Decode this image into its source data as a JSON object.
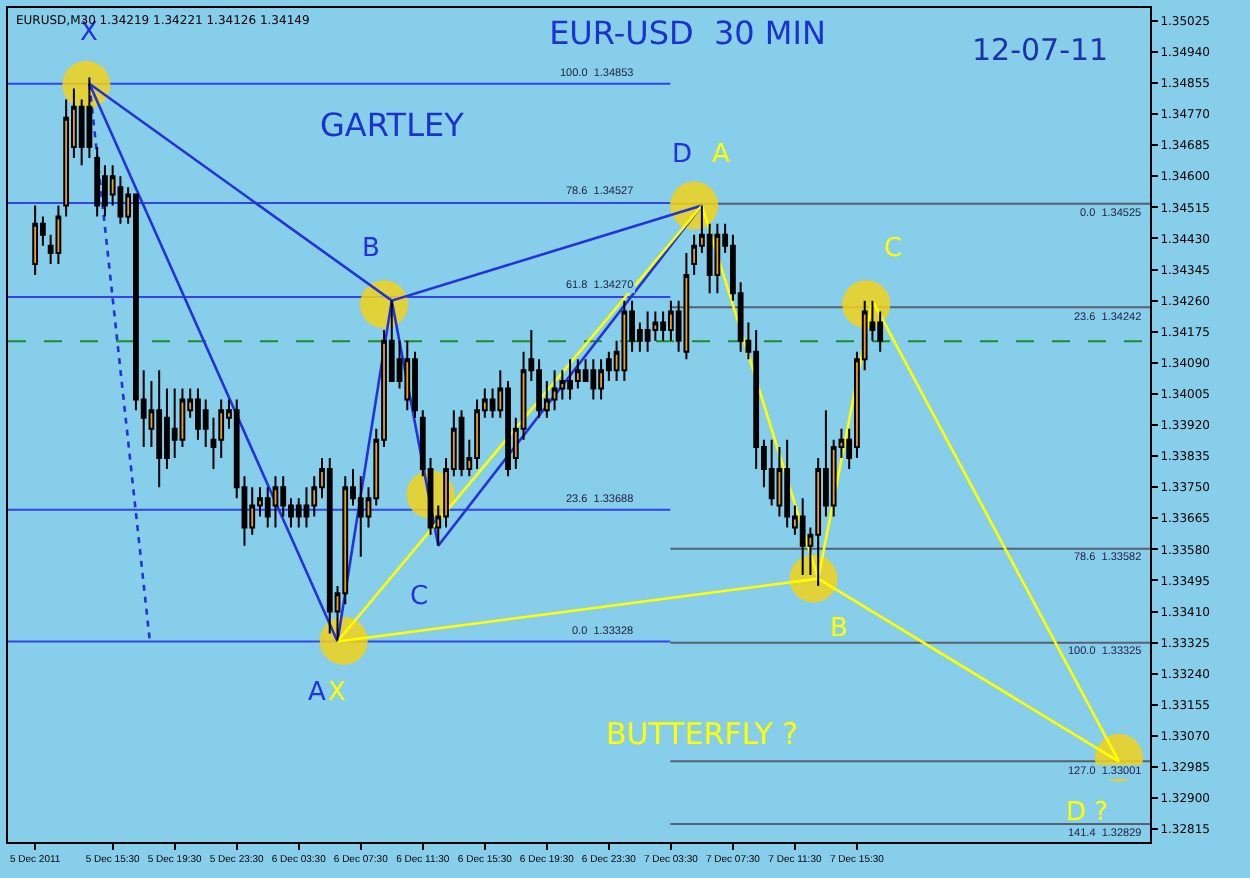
{
  "chart_data": {
    "type": "candlestick",
    "title": "EUR-USD  30 MIN",
    "subtitle": "12-07-11",
    "annotations": [
      "GARTLEY",
      "BUTTERFLY ?",
      "EURUSD,M30 1.34219 1.34221 1.34126 1.34149"
    ],
    "x": [
      "2011-12-05T10:30",
      "2011-12-05T11:00",
      "2011-12-05T11:30",
      "2011-12-05T12:00",
      "2011-12-05T12:30",
      "2011-12-05T13:00",
      "2011-12-05T13:30",
      "2011-12-05T14:00",
      "2011-12-05T14:30",
      "2011-12-05T15:00",
      "2011-12-05T15:30",
      "2011-12-05T16:00",
      "2011-12-05T16:30",
      "2011-12-05T17:00",
      "2011-12-05T17:30",
      "2011-12-05T18:00",
      "2011-12-05T18:30",
      "2011-12-05T19:00",
      "2011-12-05T19:30",
      "2011-12-05T20:00",
      "2011-12-05T20:30",
      "2011-12-05T21:00",
      "2011-12-05T21:30",
      "2011-12-05T22:00",
      "2011-12-05T22:30",
      "2011-12-05T23:00",
      "2011-12-05T23:30",
      "2011-12-06T00:00",
      "2011-12-06T00:30",
      "2011-12-06T01:00",
      "2011-12-06T01:30",
      "2011-12-06T02:00",
      "2011-12-06T02:30",
      "2011-12-06T03:00",
      "2011-12-06T03:30",
      "2011-12-06T04:00",
      "2011-12-06T04:30",
      "2011-12-06T05:00",
      "2011-12-06T05:30",
      "2011-12-06T06:00",
      "2011-12-06T06:30",
      "2011-12-06T07:00",
      "2011-12-06T07:30",
      "2011-12-06T08:00",
      "2011-12-06T08:30",
      "2011-12-06T09:00",
      "2011-12-06T09:30",
      "2011-12-06T10:00",
      "2011-12-06T10:30",
      "2011-12-06T11:00",
      "2011-12-06T11:30",
      "2011-12-06T12:00",
      "2011-12-06T12:30",
      "2011-12-06T13:00",
      "2011-12-06T13:30",
      "2011-12-06T14:00",
      "2011-12-06T14:30",
      "2011-12-06T15:00",
      "2011-12-06T15:30",
      "2011-12-06T16:00",
      "2011-12-06T16:30",
      "2011-12-06T17:00",
      "2011-12-06T17:30",
      "2011-12-06T18:00",
      "2011-12-06T18:30",
      "2011-12-06T19:00",
      "2011-12-06T19:30",
      "2011-12-06T20:00",
      "2011-12-06T20:30",
      "2011-12-06T21:00",
      "2011-12-06T21:30",
      "2011-12-06T22:00",
      "2011-12-06T22:30",
      "2011-12-06T23:00",
      "2011-12-06T23:30",
      "2011-12-07T00:00",
      "2011-12-07T00:30",
      "2011-12-07T01:00",
      "2011-12-07T01:30",
      "2011-12-07T02:00",
      "2011-12-07T02:30",
      "2011-12-07T03:00",
      "2011-12-07T03:30",
      "2011-12-07T04:00",
      "2011-12-07T04:30",
      "2011-12-07T05:00",
      "2011-12-07T05:30",
      "2011-12-07T06:00",
      "2011-12-07T06:30",
      "2011-12-07T07:00",
      "2011-12-07T07:30",
      "2011-12-07T08:00",
      "2011-12-07T08:30",
      "2011-12-07T09:00",
      "2011-12-07T09:30",
      "2011-12-07T10:00",
      "2011-12-07T10:30",
      "2011-12-07T11:00",
      "2011-12-07T11:30",
      "2011-12-07T12:00",
      "2011-12-07T12:30",
      "2011-12-07T13:00",
      "2011-12-07T13:30",
      "2011-12-07T14:00",
      "2011-12-07T14:30",
      "2011-12-07T15:00",
      "2011-12-07T15:30",
      "2011-12-07T16:00",
      "2011-12-07T16:30",
      "2011-12-07T17:00"
    ],
    "ohlc": [
      [
        1.3436,
        1.3452,
        1.3433,
        1.3447
      ],
      [
        1.3447,
        1.3449,
        1.3441,
        1.3444
      ],
      [
        1.3441,
        1.3444,
        1.3436,
        1.3439
      ],
      [
        1.3439,
        1.3452,
        1.3436,
        1.3449
      ],
      [
        1.3452,
        1.3481,
        1.3449,
        1.3476
      ],
      [
        1.3468,
        1.3484,
        1.3465,
        1.3479
      ],
      [
        1.3479,
        1.3481,
        1.3463,
        1.3468
      ],
      [
        1.3479,
        1.3487,
        1.3465,
        1.3468
      ],
      [
        1.3465,
        1.3468,
        1.3449,
        1.3452
      ],
      [
        1.346,
        1.3463,
        1.3449,
        1.3452
      ],
      [
        1.3455,
        1.3463,
        1.3452,
        1.346
      ],
      [
        1.3457,
        1.346,
        1.3447,
        1.3449
      ],
      [
        1.3449,
        1.3457,
        1.3447,
        1.3455
      ],
      [
        1.3455,
        1.3455,
        1.3396,
        1.3399
      ],
      [
        1.3399,
        1.3407,
        1.3386,
        1.3394
      ],
      [
        1.3391,
        1.3404,
        1.3386,
        1.3396
      ],
      [
        1.3396,
        1.3407,
        1.3375,
        1.3383
      ],
      [
        1.3394,
        1.3402,
        1.338,
        1.3383
      ],
      [
        1.3391,
        1.3402,
        1.3383,
        1.3388
      ],
      [
        1.3388,
        1.3402,
        1.3386,
        1.3399
      ],
      [
        1.3396,
        1.3402,
        1.3394,
        1.3399
      ],
      [
        1.3399,
        1.3402,
        1.3388,
        1.3391
      ],
      [
        1.3396,
        1.3399,
        1.3386,
        1.3391
      ],
      [
        1.3388,
        1.3394,
        1.338,
        1.3386
      ],
      [
        1.3388,
        1.3399,
        1.3383,
        1.3396
      ],
      [
        1.3394,
        1.3399,
        1.3391,
        1.3396
      ],
      [
        1.3396,
        1.3399,
        1.3372,
        1.3375
      ],
      [
        1.3375,
        1.3378,
        1.3359,
        1.3364
      ],
      [
        1.3364,
        1.3375,
        1.3362,
        1.337
      ],
      [
        1.337,
        1.3375,
        1.3367,
        1.3372
      ],
      [
        1.3372,
        1.3375,
        1.3364,
        1.3367
      ],
      [
        1.337,
        1.3378,
        1.3364,
        1.3375
      ],
      [
        1.3375,
        1.3378,
        1.3367,
        1.337
      ],
      [
        1.337,
        1.3372,
        1.3364,
        1.3367
      ],
      [
        1.337,
        1.3372,
        1.3364,
        1.3367
      ],
      [
        1.337,
        1.3375,
        1.3364,
        1.3367
      ],
      [
        1.337,
        1.3378,
        1.3367,
        1.3375
      ],
      [
        1.3375,
        1.3383,
        1.3372,
        1.338
      ],
      [
        1.338,
        1.3383,
        1.3335,
        1.3341
      ],
      [
        1.3341,
        1.3348,
        1.3333,
        1.3346
      ],
      [
        1.3346,
        1.3378,
        1.3343,
        1.3375
      ],
      [
        1.3375,
        1.338,
        1.337,
        1.3372
      ],
      [
        1.3372,
        1.3378,
        1.3356,
        1.3367
      ],
      [
        1.3367,
        1.3375,
        1.3364,
        1.3372
      ],
      [
        1.3372,
        1.3391,
        1.337,
        1.3388
      ],
      [
        1.3388,
        1.3418,
        1.3386,
        1.3415
      ],
      [
        1.3415,
        1.3426,
        1.3404,
        1.3404
      ],
      [
        1.341,
        1.3415,
        1.3402,
        1.3404
      ],
      [
        1.3399,
        1.3415,
        1.3396,
        1.341
      ],
      [
        1.341,
        1.3412,
        1.3394,
        1.3396
      ],
      [
        1.3394,
        1.3396,
        1.3378,
        1.338
      ],
      [
        1.338,
        1.3383,
        1.3362,
        1.3364
      ],
      [
        1.3364,
        1.337,
        1.3359,
        1.3367
      ],
      [
        1.3367,
        1.3383,
        1.3364,
        1.338
      ],
      [
        1.338,
        1.3396,
        1.3378,
        1.3391
      ],
      [
        1.3394,
        1.3396,
        1.3378,
        1.338
      ],
      [
        1.338,
        1.3388,
        1.3378,
        1.3383
      ],
      [
        1.3383,
        1.3399,
        1.338,
        1.3396
      ],
      [
        1.3396,
        1.3402,
        1.3394,
        1.3399
      ],
      [
        1.3399,
        1.3402,
        1.3394,
        1.3396
      ],
      [
        1.3396,
        1.3407,
        1.3394,
        1.3402
      ],
      [
        1.3402,
        1.3404,
        1.3378,
        1.338
      ],
      [
        1.3383,
        1.3394,
        1.338,
        1.3391
      ],
      [
        1.3391,
        1.3412,
        1.3388,
        1.3407
      ],
      [
        1.341,
        1.3418,
        1.3404,
        1.3407
      ],
      [
        1.3407,
        1.341,
        1.3394,
        1.3396
      ],
      [
        1.3396,
        1.3404,
        1.3394,
        1.3399
      ],
      [
        1.3399,
        1.3407,
        1.3396,
        1.3402
      ],
      [
        1.3402,
        1.3407,
        1.3399,
        1.3404
      ],
      [
        1.3404,
        1.341,
        1.3399,
        1.3402
      ],
      [
        1.3404,
        1.341,
        1.3402,
        1.3407
      ],
      [
        1.3407,
        1.341,
        1.3404,
        1.3404
      ],
      [
        1.3407,
        1.341,
        1.3399,
        1.3402
      ],
      [
        1.3402,
        1.341,
        1.3399,
        1.3407
      ],
      [
        1.341,
        1.3412,
        1.3404,
        1.3407
      ],
      [
        1.3407,
        1.3415,
        1.3404,
        1.3412
      ],
      [
        1.3407,
        1.3426,
        1.3404,
        1.3423
      ],
      [
        1.3423,
        1.3426,
        1.3412,
        1.3415
      ],
      [
        1.3418,
        1.342,
        1.3412,
        1.3415
      ],
      [
        1.3418,
        1.3423,
        1.3412,
        1.3415
      ],
      [
        1.3418,
        1.3423,
        1.3415,
        1.342
      ],
      [
        1.342,
        1.3423,
        1.3415,
        1.3418
      ],
      [
        1.3418,
        1.3426,
        1.3415,
        1.3423
      ],
      [
        1.3423,
        1.3426,
        1.3412,
        1.3415
      ],
      [
        1.3412,
        1.3439,
        1.341,
        1.3433
      ],
      [
        1.3436,
        1.3444,
        1.3433,
        1.3441
      ],
      [
        1.3441,
        1.3452,
        1.3439,
        1.3444
      ],
      [
        1.3444,
        1.3447,
        1.3428,
        1.3433
      ],
      [
        1.3433,
        1.3447,
        1.3428,
        1.3444
      ],
      [
        1.3444,
        1.3447,
        1.3439,
        1.3441
      ],
      [
        1.3441,
        1.3444,
        1.3426,
        1.3428
      ],
      [
        1.3428,
        1.3431,
        1.3412,
        1.3415
      ],
      [
        1.3415,
        1.342,
        1.341,
        1.3412
      ],
      [
        1.3412,
        1.3418,
        1.338,
        1.3386
      ],
      [
        1.3386,
        1.3388,
        1.3375,
        1.338
      ],
      [
        1.338,
        1.3388,
        1.337,
        1.3372
      ],
      [
        1.337,
        1.3386,
        1.3367,
        1.338
      ],
      [
        1.338,
        1.3388,
        1.3364,
        1.3367
      ],
      [
        1.3364,
        1.337,
        1.3362,
        1.3367
      ],
      [
        1.3367,
        1.3372,
        1.3351,
        1.3359
      ],
      [
        1.3359,
        1.3364,
        1.3351,
        1.3362
      ],
      [
        1.3362,
        1.3383,
        1.3348,
        1.338
      ],
      [
        1.338,
        1.3396,
        1.3367,
        1.337
      ],
      [
        1.337,
        1.3388,
        1.3367,
        1.3386
      ],
      [
        1.3386,
        1.3391,
        1.3383,
        1.3388
      ],
      [
        1.3388,
        1.3391,
        1.338,
        1.3383
      ],
      [
        1.3386,
        1.3412,
        1.3383,
        1.341
      ],
      [
        1.341,
        1.3426,
        1.3407,
        1.3423
      ],
      [
        1.342,
        1.3426,
        1.3415,
        1.3418
      ],
      [
        1.342,
        1.3423,
        1.3412,
        1.3415
      ]
    ],
    "series": [
      {
        "type": "scatter",
        "color": "#f2d21a",
        "marker": "circle",
        "x": [
          "2011-12-05T13:48",
          "2011-12-06T09:00",
          "2011-12-06T12:00",
          "2011-12-06T06:24",
          "2011-12-07T05:00",
          "2011-12-07T16:06",
          "2011-12-07T12:42",
          "2011-12-08T08:24"
        ],
        "values": [
          1.3485,
          1.3425,
          1.3373,
          1.3333,
          1.3452,
          1.3425,
          1.335,
          1.3301
        ]
      },
      {
        "type": "line",
        "color": "#2233dd",
        "x": [
          "2011-12-05T14:00",
          "2011-12-06T06:00",
          "2011-12-06T09:30",
          "2011-12-06T12:30",
          "2011-12-07T05:30"
        ],
        "values": [
          1.34853,
          1.33328,
          1.3426,
          1.3359,
          1.3452
        ],
        "value_labels": [
          "X",
          "A",
          "B",
          "C",
          "D"
        ]
      },
      {
        "type": "line",
        "color": "#2233dd",
        "x": [
          "2011-12-05T14:00",
          "2011-12-06T09:30",
          "2011-12-07T05:30"
        ],
        "values": [
          1.34853,
          1.3426,
          1.3452
        ]
      },
      {
        "type": "line",
        "color": "#2233dd",
        "line_style": "dotted",
        "x": [
          "2011-12-05T14:00",
          "2011-12-05T17:54"
        ],
        "values": [
          1.34853,
          1.33328
        ]
      },
      {
        "type": "line",
        "color": "#ffff00",
        "x": [
          "2011-12-06T06:00",
          "2011-12-07T05:30",
          "2011-12-07T13:00",
          "2011-12-07T16:30",
          "2011-12-08T08:24"
        ],
        "values": [
          1.33328,
          1.3452,
          1.335,
          1.3426,
          1.33
        ],
        "value_labels": [
          "X",
          "A",
          "B",
          "C",
          "D ?"
        ]
      },
      {
        "type": "line",
        "color": "#ffff00",
        "x": [
          "2011-12-06T06:00",
          "2011-12-07T13:00",
          "2011-12-08T08:24"
        ],
        "values": [
          1.33328,
          1.335,
          1.33
        ]
      }
    ],
    "ref_lines": [
      {
        "axis": "y",
        "value": 1.34853,
        "label": "100.0  1.34853",
        "color": "#3344ee"
      },
      {
        "axis": "y",
        "value": 1.34527,
        "label": "78.6  1.34527",
        "color": "#3344ee"
      },
      {
        "axis": "y",
        "value": 1.3427,
        "label": "61.8  1.34270",
        "color": "#3344ee"
      },
      {
        "axis": "y",
        "value": 1.33688,
        "label": "23.6  1.33688",
        "color": "#3344ee"
      },
      {
        "axis": "y",
        "value": 1.33328,
        "label": "0.0  1.33328",
        "color": "#3344ee"
      },
      {
        "axis": "y",
        "value": 1.34525,
        "label": "0.0  1.34525",
        "color": "#556070"
      },
      {
        "axis": "y",
        "value": 1.34242,
        "label": "23.6  1.34242",
        "color": "#556070"
      },
      {
        "axis": "y",
        "value": 1.33582,
        "label": "78.6  1.33582",
        "color": "#556070"
      },
      {
        "axis": "y",
        "value": 1.33325,
        "label": "100.0  1.33325",
        "color": "#556070"
      },
      {
        "axis": "y",
        "value": 1.33001,
        "label": "127.0  1.33001",
        "color": "#556070"
      },
      {
        "axis": "y",
        "value": 1.32829,
        "label": "141.4  1.32829",
        "color": "#556070"
      },
      {
        "axis": "y",
        "value": 1.34149,
        "color": "#1e8a2a",
        "line_style": "dashed"
      }
    ],
    "xlim": [
      "2011-12-05T08:45",
      "2011-12-08T10:24"
    ],
    "xticks": [
      {
        "value": "2011-12-05T10:30",
        "label": "5 Dec 2011"
      },
      {
        "value": "2011-12-05T15:30",
        "label": "5 Dec 15:30"
      },
      {
        "value": "2011-12-05T19:30",
        "label": "5 Dec 19:30"
      },
      {
        "value": "2011-12-05T23:30",
        "label": "5 Dec 23:30"
      },
      {
        "value": "2011-12-06T03:30",
        "label": "6 Dec 03:30"
      },
      {
        "value": "2011-12-06T07:30",
        "label": "6 Dec 07:30"
      },
      {
        "value": "2011-12-06T11:30",
        "label": "6 Dec 11:30"
      },
      {
        "value": "2011-12-06T15:30",
        "label": "6 Dec 15:30"
      },
      {
        "value": "2011-12-06T19:30",
        "label": "6 Dec 19:30"
      },
      {
        "value": "2011-12-06T23:30",
        "label": "6 Dec 23:30"
      },
      {
        "value": "2011-12-07T03:30",
        "label": "7 Dec 03:30"
      },
      {
        "value": "2011-12-07T07:30",
        "label": "7 Dec 07:30"
      },
      {
        "value": "2011-12-07T11:30",
        "label": "7 Dec 11:30"
      },
      {
        "value": "2011-12-07T15:30",
        "label": "7 Dec 15:30"
      }
    ],
    "ylim": [
      1.3278,
      1.3506
    ],
    "yticks": [
      1.35025,
      {
        "value": 1.3494,
        "label": "1.34940"
      },
      1.34855,
      {
        "value": 1.3477,
        "label": "1.34770"
      },
      1.34685,
      {
        "value": 1.346,
        "label": "1.34600"
      },
      1.34515,
      {
        "value": 1.3443,
        "label": "1.34430"
      },
      1.34345,
      {
        "value": 1.3426,
        "label": "1.34260"
      },
      1.34175,
      {
        "value": 1.3409,
        "label": "1.34090"
      },
      1.34005,
      {
        "value": 1.3392,
        "label": "1.33920"
      },
      1.33835,
      {
        "value": 1.3375,
        "label": "1.33750"
      },
      1.33665,
      {
        "value": 1.3358,
        "label": "1.33580"
      },
      1.33495,
      {
        "value": 1.3341,
        "label": "1.33410"
      },
      1.33325,
      {
        "value": 1.3324,
        "label": "1.33240"
      },
      1.33155,
      {
        "value": 1.3307,
        "label": "1.33070"
      },
      1.32985,
      {
        "value": 1.329,
        "label": "1.32900"
      },
      1.32815
    ]
  }
}
